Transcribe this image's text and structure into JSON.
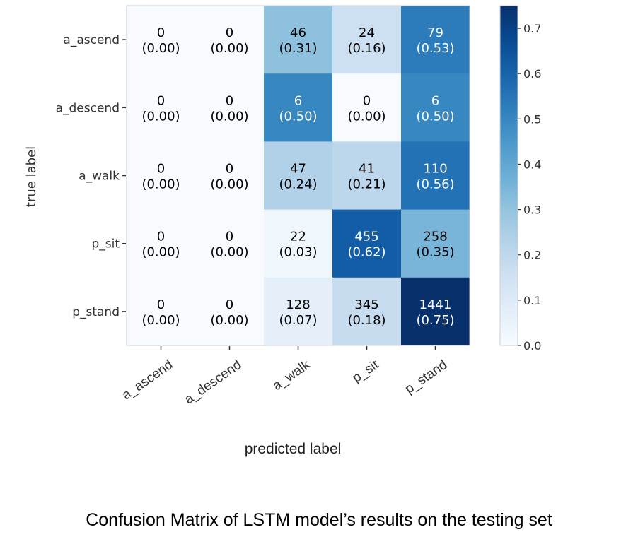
{
  "chart_data": {
    "type": "heatmap",
    "title": "",
    "xlabel": "predicted label",
    "ylabel": "true label",
    "categories_x": [
      "a_ascend",
      "a_descend",
      "a_walk",
      "p_sit",
      "p_stand"
    ],
    "categories_y": [
      "a_ascend",
      "a_descend",
      "a_walk",
      "p_sit",
      "p_stand"
    ],
    "counts": [
      [
        0,
        0,
        46,
        24,
        79
      ],
      [
        0,
        0,
        6,
        0,
        6
      ],
      [
        0,
        0,
        47,
        41,
        110
      ],
      [
        0,
        0,
        22,
        455,
        258
      ],
      [
        0,
        0,
        128,
        345,
        1441
      ]
    ],
    "count_labels": [
      [
        "0",
        "0",
        "46",
        "24",
        "79"
      ],
      [
        "0",
        "0",
        "6",
        "0",
        "6"
      ],
      [
        "0",
        "0",
        "47",
        "41",
        "110"
      ],
      [
        "0",
        "0",
        "22",
        "455",
        "258"
      ],
      [
        "0",
        "0",
        "128",
        "345",
        "1441"
      ]
    ],
    "normalized": [
      [
        0.0,
        0.0,
        0.31,
        0.16,
        0.53
      ],
      [
        0.0,
        0.0,
        0.5,
        0.0,
        0.5
      ],
      [
        0.0,
        0.0,
        0.24,
        0.21,
        0.56
      ],
      [
        0.0,
        0.0,
        0.03,
        0.62,
        0.35
      ],
      [
        0.0,
        0.0,
        0.07,
        0.18,
        0.75
      ]
    ],
    "normalized_labels": [
      [
        "(0.00)",
        "(0.00)",
        "(0.31)",
        "(0.16)",
        "(0.53)"
      ],
      [
        "(0.00)",
        "(0.00)",
        "(0.50)",
        "(0.00)",
        "(0.50)"
      ],
      [
        "(0.00)",
        "(0.00)",
        "(0.24)",
        "(0.21)",
        "(0.56)"
      ],
      [
        "(0.00)",
        "(0.00)",
        "(0.03)",
        "(0.62)",
        "(0.35)"
      ],
      [
        "(0.00)",
        "(0.00)",
        "(0.07)",
        "(0.18)",
        "(0.75)"
      ]
    ],
    "colorbar": {
      "range": [
        0.0,
        0.75
      ],
      "ticks": [
        0.0,
        0.1,
        0.2,
        0.3,
        0.4,
        0.5,
        0.6,
        0.7
      ],
      "tick_labels": [
        "0.0",
        "0.1",
        "0.2",
        "0.3",
        "0.4",
        "0.5",
        "0.6",
        "0.7"
      ],
      "colormap": "Blues",
      "color_low": "#f7fbff",
      "color_high": "#08306b"
    }
  },
  "caption": "Confusion Matrix of LSTM model’s results on the testing set"
}
